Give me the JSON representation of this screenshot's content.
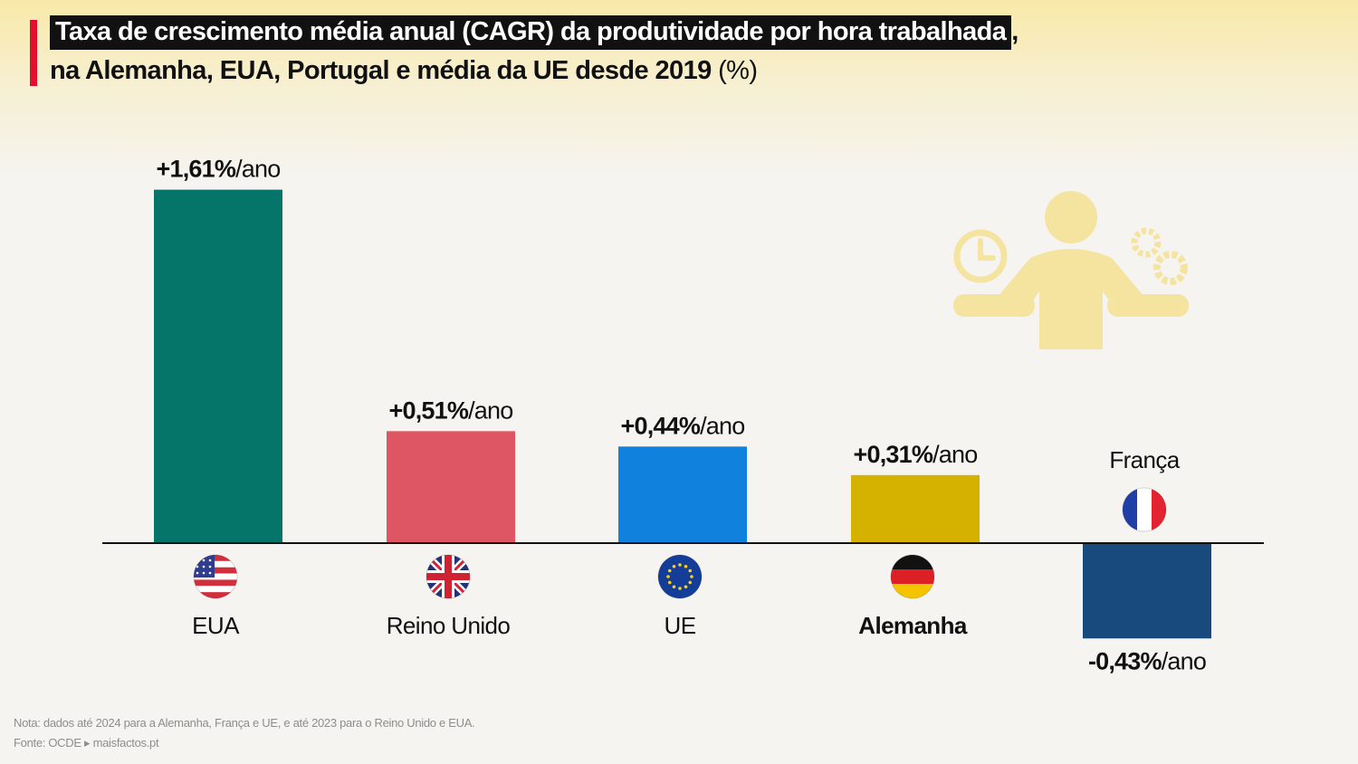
{
  "title": {
    "highlight": "Taxa de crescimento média anual (CAGR) da produtividade por hora trabalhada",
    "comma": ",",
    "line2": "na Alemanha, EUA, Portugal e média da UE desde 2019",
    "unit": "(%)"
  },
  "chart_data": {
    "type": "bar",
    "categories": [
      "EUA",
      "Reino Unido",
      "UE",
      "Alemanha",
      "França"
    ],
    "values": [
      1.61,
      0.51,
      0.44,
      0.31,
      -0.43
    ],
    "value_labels": [
      "+1,61%",
      "+0,51%",
      "+0,44%",
      "+0,31%",
      "-0,43%"
    ],
    "value_suffix": "/ano",
    "bar_colors": [
      "#067569",
      "#de5664",
      "#1181de",
      "#d6b200",
      "#194a7e"
    ],
    "highlight_category": "Alemanha",
    "flags": [
      "usa-flag-icon",
      "uk-flag-icon",
      "eu-flag-icon",
      "germany-flag-icon",
      "france-flag-icon"
    ],
    "title": "Taxa de crescimento média anual (CAGR) da produtividade por hora trabalhada, na Alemanha, EUA, Portugal e média da UE desde 2019 (%)",
    "xlabel": "",
    "ylabel": "",
    "grid": false,
    "legend": "none"
  },
  "footnote": {
    "note": "Nota: dados até 2024 para a Alemanha, França e UE, e até 2023 para o Reino Unido e EUA.",
    "source": "Fonte: OCDE ▸ maisfactos.pt"
  },
  "illustration": "person-balancing-time-and-work-icon",
  "colors": {
    "accent": "#e0102e",
    "illustration": "#f5e3a0"
  }
}
